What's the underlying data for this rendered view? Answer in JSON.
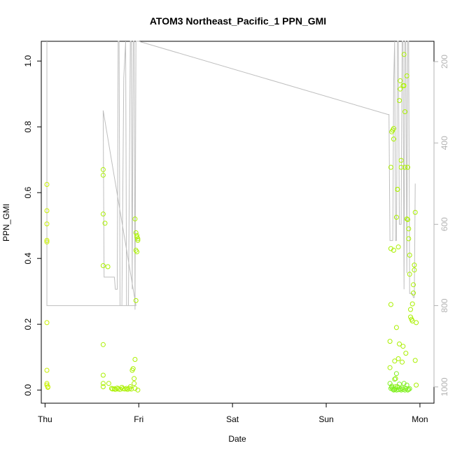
{
  "chart_data": {
    "type": "scatter",
    "title": "ATOM3 Northeast_Pacific_1 PPN_GMI",
    "xlabel": "Date",
    "ylabel": "PPN_GMI",
    "x_ticks": [
      "Thu",
      "Fri",
      "Sat",
      "Sun",
      "Mon"
    ],
    "xlim": [
      -0.04,
      4.15
    ],
    "ylim": [
      -0.04,
      1.06
    ],
    "y_ticks": [
      0.0,
      0.2,
      0.4,
      0.6,
      0.8,
      1.0
    ],
    "y_tick_labels": [
      "0.0",
      "0.2",
      "0.4",
      "0.6",
      "0.8",
      "1.0"
    ],
    "y2_ticks": [
      200,
      400,
      600,
      800,
      1000
    ],
    "y2_lim": [
      1040,
      150
    ],
    "grid": false,
    "legend": "none",
    "colors": {
      "left": "#c8f000",
      "mid": "#aaf000",
      "right": "#80f020",
      "line": "#bebebe"
    },
    "series": [
      {
        "points": [
          [
            0.02,
            0.455
          ],
          [
            0.02,
            0.45
          ],
          [
            0.02,
            0.625
          ],
          [
            0.02,
            0.545
          ],
          [
            0.02,
            0.505
          ],
          [
            0.02,
            0.205
          ],
          [
            0.02,
            0.06
          ],
          [
            0.02,
            0.02
          ],
          [
            0.02,
            0.015
          ],
          [
            0.03,
            0.01
          ],
          [
            0.03,
            0.008
          ],
          [
            0.62,
            0.67
          ],
          [
            0.62,
            0.653
          ],
          [
            0.62,
            0.535
          ],
          [
            0.64,
            0.507
          ],
          [
            0.62,
            0.378
          ],
          [
            0.67,
            0.375
          ],
          [
            0.62,
            0.138
          ],
          [
            0.62,
            0.045
          ],
          [
            0.62,
            0.02
          ],
          [
            0.62,
            0.01
          ],
          [
            0.68,
            0.02
          ],
          [
            0.71,
            0.005
          ],
          [
            0.72,
            0.003
          ],
          [
            0.74,
            0.004
          ],
          [
            0.75,
            0.002
          ],
          [
            0.77,
            0.006
          ],
          [
            0.78,
            0.003
          ],
          [
            0.8,
            0.002
          ],
          [
            0.82,
            0.008
          ],
          [
            0.83,
            0.004
          ],
          [
            0.85,
            0.003
          ],
          [
            0.87,
            0.005
          ],
          [
            0.88,
            0.002
          ],
          [
            0.9,
            0.004
          ],
          [
            0.91,
            0.01
          ],
          [
            0.92,
            0.003
          ],
          [
            0.93,
            0.06
          ],
          [
            0.94,
            0.065
          ],
          [
            0.95,
            0.02
          ],
          [
            0.95,
            0.035
          ],
          [
            0.96,
            0.093
          ],
          [
            0.96,
            0.005
          ],
          [
            0.96,
            0.52
          ],
          [
            0.97,
            0.478
          ],
          [
            0.98,
            0.47
          ],
          [
            0.98,
            0.465
          ],
          [
            0.99,
            0.46
          ],
          [
            0.99,
            0.455
          ],
          [
            0.97,
            0.425
          ],
          [
            0.98,
            0.42
          ],
          [
            0.97,
            0.272
          ],
          [
            0.99,
            0.0
          ]
        ]
      },
      {
        "points": [
          [
            3.68,
            0.068
          ],
          [
            3.68,
            0.148
          ],
          [
            3.69,
            0.26
          ],
          [
            3.69,
            0.43
          ],
          [
            3.69,
            0.677
          ],
          [
            3.7,
            0.785
          ],
          [
            3.71,
            0.79
          ],
          [
            3.72,
            0.795
          ],
          [
            3.72,
            0.763
          ],
          [
            3.72,
            0.425
          ],
          [
            3.73,
            0.088
          ],
          [
            3.74,
            0.035
          ],
          [
            3.74,
            0.01
          ],
          [
            3.75,
            0.19
          ],
          [
            3.75,
            0.525
          ],
          [
            3.76,
            0.61
          ],
          [
            3.76,
            0.61
          ],
          [
            3.77,
            0.435
          ],
          [
            3.77,
            0.095
          ],
          [
            3.78,
            0.14
          ],
          [
            3.78,
            0.88
          ],
          [
            3.79,
            0.94
          ],
          [
            3.79,
            0.915
          ],
          [
            3.8,
            0.698
          ],
          [
            3.8,
            0.677
          ],
          [
            3.81,
            0.085
          ],
          [
            3.82,
            0.133
          ],
          [
            3.82,
            0.925
          ],
          [
            3.83,
            0.925
          ],
          [
            3.83,
            1.02
          ],
          [
            3.84,
            0.846
          ],
          [
            3.84,
            0.677
          ],
          [
            3.85,
            0.112
          ],
          [
            3.86,
            0.955
          ],
          [
            3.86,
            0.52
          ],
          [
            3.87,
            0.518
          ],
          [
            3.87,
            0.677
          ],
          [
            3.88,
            0.49
          ],
          [
            3.88,
            0.46
          ],
          [
            3.89,
            0.41
          ],
          [
            3.89,
            0.352
          ],
          [
            3.9,
            0.245
          ],
          [
            3.9,
            0.222
          ],
          [
            3.91,
            0.215
          ],
          [
            3.92,
            0.21
          ],
          [
            3.92,
            0.262
          ],
          [
            3.93,
            0.32
          ],
          [
            3.93,
            0.295
          ],
          [
            3.94,
            0.38
          ],
          [
            3.94,
            0.365
          ],
          [
            3.95,
            0.54
          ],
          [
            3.95,
            0.09
          ],
          [
            3.96,
            0.015
          ],
          [
            3.96,
            0.205
          ]
        ]
      },
      {
        "points": [
          [
            3.68,
            0.02
          ],
          [
            3.69,
            0.005
          ],
          [
            3.7,
            0.008
          ],
          [
            3.71,
            0.003
          ],
          [
            3.72,
            0.0
          ],
          [
            3.73,
            0.002
          ],
          [
            3.74,
            0.004
          ],
          [
            3.75,
            0.0
          ],
          [
            3.76,
            0.01
          ],
          [
            3.77,
            0.001
          ],
          [
            3.78,
            0.018
          ],
          [
            3.79,
            0.003
          ],
          [
            3.8,
            0.0
          ],
          [
            3.81,
            0.006
          ],
          [
            3.82,
            0.002
          ],
          [
            3.83,
            0.02
          ],
          [
            3.84,
            0.0
          ],
          [
            3.85,
            0.005
          ],
          [
            3.86,
            0.015
          ],
          [
            3.87,
            0.0
          ],
          [
            3.88,
            0.002
          ],
          [
            3.89,
            0.004
          ],
          [
            3.7,
            0.012
          ],
          [
            3.73,
            0.033
          ],
          [
            3.75,
            0.05
          ]
        ]
      }
    ],
    "line_y2": [
      [
        0.02,
        150
      ],
      [
        0.02,
        800
      ],
      [
        0.97,
        800
      ],
      [
        0.62,
        320
      ],
      [
        0.63,
        730
      ],
      [
        0.74,
        730
      ],
      [
        0.75,
        760
      ],
      [
        0.77,
        760
      ],
      [
        0.78,
        150
      ],
      [
        0.79,
        150
      ],
      [
        0.8,
        800
      ],
      [
        0.82,
        800
      ],
      [
        0.84,
        240
      ],
      [
        0.86,
        150
      ],
      [
        0.87,
        800
      ],
      [
        0.89,
        800
      ],
      [
        0.91,
        150
      ],
      [
        0.92,
        150
      ],
      [
        0.93,
        760
      ],
      [
        0.94,
        150
      ],
      [
        0.95,
        150
      ],
      [
        0.96,
        810
      ],
      [
        0.97,
        150
      ],
      [
        0.98,
        150
      ],
      [
        1.0,
        150
      ],
      [
        3.66,
        330
      ],
      [
        3.67,
        330
      ],
      [
        3.68,
        640
      ],
      [
        3.71,
        640
      ],
      [
        3.72,
        250
      ],
      [
        3.73,
        150
      ],
      [
        3.74,
        640
      ],
      [
        3.75,
        640
      ],
      [
        3.76,
        150
      ],
      [
        3.77,
        150
      ],
      [
        3.78,
        600
      ],
      [
        3.8,
        600
      ],
      [
        3.81,
        150
      ],
      [
        3.82,
        150
      ],
      [
        3.83,
        760
      ],
      [
        3.84,
        150
      ],
      [
        3.85,
        150
      ],
      [
        3.86,
        720
      ],
      [
        3.87,
        150
      ],
      [
        3.88,
        150
      ],
      [
        3.89,
        770
      ],
      [
        3.92,
        770
      ],
      [
        3.93,
        780
      ],
      [
        3.94,
        780
      ],
      [
        3.95,
        500
      ]
    ]
  }
}
